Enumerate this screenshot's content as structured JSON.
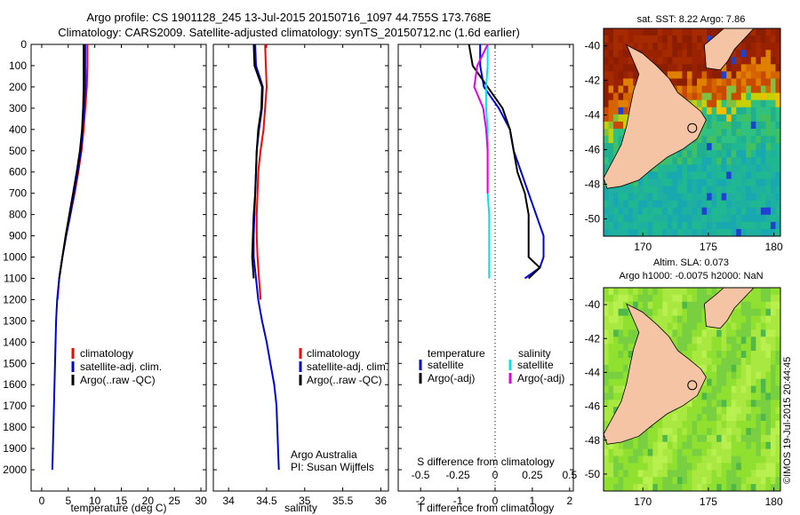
{
  "header": {
    "line1": "Argo profile: CS 1901128_245 13-Jul-2015 20150716_1097 44.755S 173.768E",
    "line2": "Climatology: CARS2009. Satellite-adjusted climatology: synTS_20150712.nc (1.6d earlier)"
  },
  "map_sst": {
    "title": "sat. SST: 8.22 Argo: 7.86"
  },
  "map_sla": {
    "title1": "Altim. SLA: 0.073",
    "title2": "Argo h1000: -0.0075 h2000: NaN"
  },
  "stamp": "©IMOS 19-Jul-2015 20:44:45",
  "colors": {
    "climatology": "#ff0000",
    "satellite": "#0000dd",
    "argo": "#000000",
    "sal_satellite": "#00e6e6",
    "sal_argo": "#e600e6",
    "land": "#f5c4a4"
  },
  "chart_data": [
    {
      "type": "line",
      "name": "temperature-profile",
      "xlabel": "temperature (deg C)",
      "ylabel": "",
      "xlim": [
        -2,
        31
      ],
      "ylim": [
        2100,
        0
      ],
      "xticks": [
        "0",
        "5",
        "10",
        "15",
        "20",
        "25",
        "30"
      ],
      "yticks": [
        "0",
        "100",
        "200",
        "300",
        "400",
        "500",
        "600",
        "700",
        "800",
        "900",
        "1000",
        "1100",
        "1200",
        "1300",
        "1400",
        "1500",
        "1600",
        "1700",
        "1800",
        "1900",
        "2000"
      ],
      "legend": [
        "climatology",
        "satellite-adj. clim.",
        "Argo(..raw -QC)"
      ],
      "series": [
        {
          "name": "climatology",
          "color": "#ff0000",
          "x": [
            8.6,
            8.6,
            8.5,
            8.2,
            7.9,
            7.5,
            6.9,
            6.2,
            5.4,
            4.6,
            3.9,
            3.3,
            3.0
          ],
          "y": [
            0,
            100,
            200,
            300,
            400,
            500,
            600,
            700,
            800,
            900,
            1000,
            1100,
            1200
          ]
        },
        {
          "name": "satellite-adj. clim.",
          "color": "#0000dd",
          "x": [
            8.2,
            8.2,
            8.2,
            8.0,
            7.7,
            7.4,
            6.8,
            6.1,
            5.4,
            4.6,
            3.9,
            3.3,
            2.9,
            2.7,
            2.6,
            2.5,
            2.4,
            2.3,
            2.2,
            2.1,
            2.0
          ],
          "y": [
            0,
            100,
            200,
            300,
            400,
            500,
            600,
            700,
            800,
            900,
            1000,
            1100,
            1200,
            1300,
            1400,
            1500,
            1600,
            1700,
            1800,
            1900,
            2000
          ]
        },
        {
          "name": "Argo(..raw -QC)",
          "color": "#000000",
          "x": [
            7.9,
            7.9,
            7.9,
            7.8,
            7.6,
            7.2,
            6.6,
            5.9,
            5.2,
            4.5,
            3.9,
            3.3
          ],
          "y": [
            0,
            100,
            200,
            300,
            400,
            500,
            600,
            700,
            800,
            900,
            1000,
            1100
          ]
        }
      ]
    },
    {
      "type": "line",
      "name": "salinity-profile",
      "xlabel": "salinity",
      "xlim": [
        33.8,
        36.1
      ],
      "ylim": [
        2100,
        0
      ],
      "xticks": [
        "34",
        "34.5",
        "35",
        "35.5",
        "36"
      ],
      "legend": [
        "climatology",
        "satellite-adj. clim.",
        "Argo(..raw -QC)"
      ],
      "annotation": [
        "Argo Australia",
        "PI: Susan Wijffels"
      ],
      "series": [
        {
          "name": "climatology",
          "color": "#ff0000",
          "x": [
            34.48,
            34.49,
            34.5,
            34.48,
            34.46,
            34.42,
            34.39,
            34.38,
            34.37,
            34.37,
            34.38,
            34.4,
            34.42
          ],
          "y": [
            0,
            100,
            200,
            300,
            400,
            500,
            600,
            700,
            800,
            900,
            1000,
            1100,
            1200
          ]
        },
        {
          "name": "satellite-adj. clim.",
          "color": "#0000dd",
          "x": [
            34.35,
            34.36,
            34.45,
            34.44,
            34.4,
            34.37,
            34.36,
            34.35,
            34.34,
            34.33,
            34.33,
            34.36,
            34.39,
            34.44,
            34.5,
            34.55,
            34.6,
            34.63,
            34.64,
            34.65,
            34.66
          ],
          "y": [
            0,
            100,
            200,
            300,
            400,
            500,
            600,
            700,
            800,
            900,
            1000,
            1100,
            1200,
            1300,
            1400,
            1500,
            1600,
            1700,
            1800,
            1900,
            2000
          ]
        },
        {
          "name": "Argo(..raw -QC)",
          "color": "#000000",
          "x": [
            34.33,
            34.34,
            34.44,
            34.43,
            34.39,
            34.37,
            34.36,
            34.35,
            34.33,
            34.32,
            34.31,
            34.33
          ],
          "y": [
            0,
            100,
            200,
            300,
            400,
            500,
            600,
            700,
            800,
            900,
            1000,
            1100
          ]
        }
      ]
    },
    {
      "type": "line",
      "name": "difference-profile",
      "xlabel": "T difference from climatology",
      "xlabel_top": "S difference from climatology",
      "xlim": [
        -2.6,
        2.1
      ],
      "ylim": [
        2100,
        0
      ],
      "xticks": [
        "-2",
        "-1",
        "0",
        "1",
        "2"
      ],
      "xticks_top": [
        "-0.5",
        "-0.25",
        "0",
        "0.25",
        "0.5"
      ],
      "legend_headers": [
        "temperature",
        "salinity"
      ],
      "legend_temperature": [
        "satellite",
        "Argo(-adj)"
      ],
      "legend_salinity": [
        "satellite",
        "Argo(-adj)"
      ],
      "series": [
        {
          "name": "temperature satellite",
          "color": "#0000dd",
          "x": [
            -0.4,
            -0.4,
            -0.3,
            0.1,
            0.4,
            0.5,
            0.7,
            0.9,
            1.1,
            1.3,
            1.3,
            1.2,
            0.8
          ],
          "y": [
            0,
            100,
            200,
            300,
            400,
            500,
            600,
            700,
            800,
            900,
            1000,
            1050,
            1100
          ]
        },
        {
          "name": "temperature Argo(-adj)",
          "color": "#000000",
          "x": [
            -0.7,
            -0.6,
            -0.2,
            0.2,
            0.4,
            0.5,
            0.6,
            0.8,
            0.9,
            0.9,
            0.9,
            1.2,
            0.9
          ],
          "y": [
            0,
            100,
            200,
            300,
            400,
            500,
            600,
            700,
            800,
            900,
            1000,
            1050,
            1100
          ]
        },
        {
          "name": "salinity satellite",
          "color": "#00e6e6",
          "x": [
            -0.05,
            -0.05,
            -0.06,
            -0.06,
            -0.05,
            -0.05,
            -0.05,
            -0.05,
            -0.04,
            -0.04,
            -0.04,
            -0.04
          ],
          "y": [
            0,
            100,
            200,
            300,
            400,
            500,
            600,
            700,
            800,
            900,
            1000,
            1100
          ]
        },
        {
          "name": "salinity Argo(-adj)",
          "color": "#e600e6",
          "x": [
            -0.05,
            -0.12,
            -0.14,
            -0.08,
            -0.06,
            -0.05,
            -0.05,
            -0.05
          ],
          "y": [
            0,
            100,
            200,
            300,
            400,
            500,
            600,
            700
          ]
        }
      ]
    },
    {
      "type": "heatmap",
      "name": "sst-map",
      "title": "sat. SST: 8.22 Argo: 7.86",
      "xlim": [
        167,
        180.5
      ],
      "ylim": [
        -51,
        -39
      ],
      "xticks": [
        "170",
        "175",
        "180"
      ],
      "yticks": [
        "-40",
        "-42",
        "-44",
        "-46",
        "-48",
        "-50"
      ],
      "argo_position": {
        "lon": 173.768,
        "lat": -44.755
      }
    },
    {
      "type": "heatmap",
      "name": "sla-map",
      "title": "Altim. SLA: 0.073",
      "subtitle": "Argo h1000: -0.0075 h2000: NaN",
      "xlim": [
        167,
        180.5
      ],
      "ylim": [
        -51,
        -39
      ],
      "xticks": [
        "170",
        "175",
        "180"
      ],
      "yticks": [
        "-40",
        "-42",
        "-44",
        "-46",
        "-48",
        "-50"
      ],
      "argo_position": {
        "lon": 173.768,
        "lat": -44.755
      }
    }
  ]
}
